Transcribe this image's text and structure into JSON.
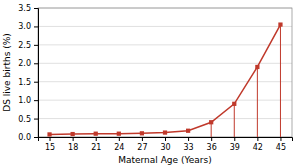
{
  "chart_data": {
    "type": "line",
    "xlabel": "Maternal Age (Years)",
    "ylabel": "DS live births (%)",
    "x": [
      15,
      18,
      21,
      24,
      27,
      30,
      33,
      36,
      39,
      42,
      45
    ],
    "values": [
      0.07,
      0.08,
      0.09,
      0.09,
      0.1,
      0.12,
      0.17,
      0.4,
      0.9,
      1.9,
      3.05
    ],
    "vlines": [
      36,
      39,
      42,
      45
    ],
    "color": "#c0392b",
    "marker": "square",
    "xlim": [
      13.5,
      46.5
    ],
    "ylim": [
      0,
      3.5
    ],
    "xticks": [
      15,
      18,
      21,
      24,
      27,
      30,
      33,
      36,
      39,
      42,
      45
    ],
    "yticks": [
      {
        "value": 0,
        "label": "0.0"
      },
      0.5,
      {
        "value": 1,
        "label": "1.0"
      },
      1.5,
      {
        "value": 2,
        "label": "2.0"
      },
      2.5,
      {
        "value": 3,
        "label": "3.0"
      },
      3.5
    ],
    "grid": true
  }
}
